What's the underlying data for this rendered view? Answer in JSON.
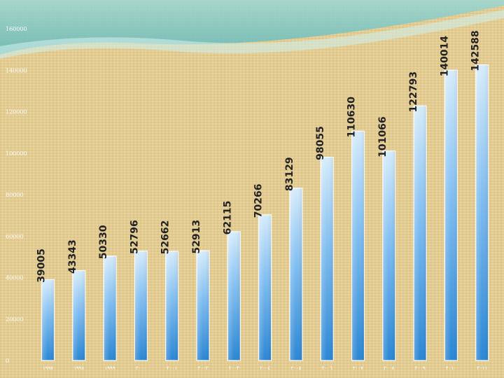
{
  "chart_data": {
    "type": "bar",
    "categories": [
      "١٩٩٧",
      "١٩٩٨",
      "١٩٩٩",
      "٢٠٠٠",
      "٢٠٠١",
      "٢٠٠٢",
      "٢٠٠٣",
      "٢٠٠٤",
      "٢٠٠٥",
      "٢٠٠٦",
      "٢٠٠٧",
      "٢٠٠٨",
      "٢٠٠٩",
      "٢٠١٠",
      "٢٠١١"
    ],
    "values": [
      39005,
      43343,
      50330,
      52796,
      52662,
      52913,
      62115,
      70266,
      83129,
      98055,
      110630,
      101066,
      122793,
      140014,
      142588
    ],
    "ylim": [
      0,
      160000
    ],
    "yticks": [
      "0",
      "20000",
      "40000",
      "60000",
      "80000",
      "100000",
      "120000",
      "140000",
      "160000"
    ],
    "grid": false,
    "data_labels": true,
    "data_label_rotation": "vertical",
    "colors": {
      "bar_top": "#d6ecfb",
      "bar_bottom": "#2a86d4",
      "label": "#222222",
      "tick": "#ffffff",
      "accent_teal": "#74c4c4"
    }
  }
}
